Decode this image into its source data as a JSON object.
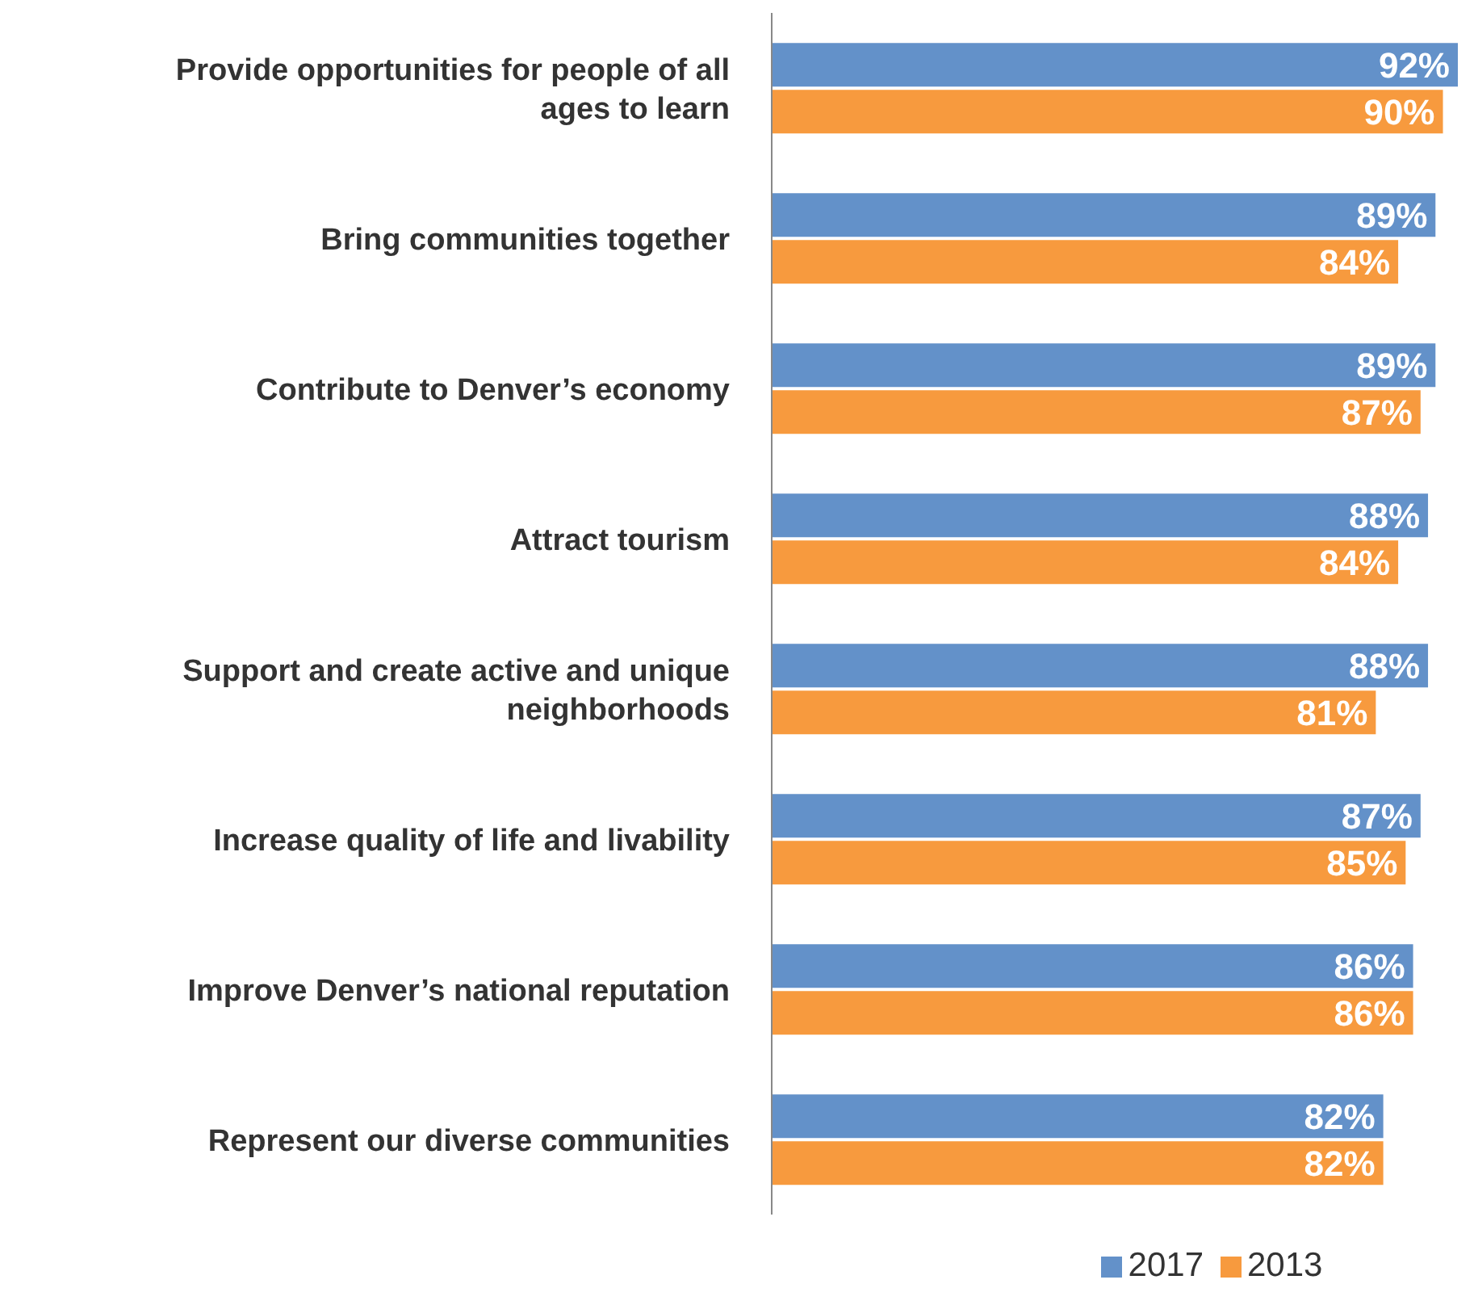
{
  "chart_data": {
    "type": "bar",
    "orientation": "horizontal",
    "categories": [
      "Provide opportunities for people of all ages to learn",
      "Bring communities together",
      "Contribute to Denver’s economy",
      "Attract tourism",
      "Support and create active and unique neighborhoods",
      "Increase quality of life and livability",
      "Improve Denver’s national reputation",
      "Represent our diverse communities"
    ],
    "series": [
      {
        "name": "2017",
        "color": "#6391c9",
        "values": [
          92,
          89,
          89,
          88,
          88,
          87,
          86,
          82
        ],
        "value_labels": [
          "92%",
          "89%",
          "89%",
          "88%",
          "88%",
          "87%",
          "86%",
          "82%"
        ]
      },
      {
        "name": "2013",
        "color": "#f79a3e",
        "values": [
          90,
          84,
          87,
          84,
          81,
          85,
          86,
          82
        ],
        "value_labels": [
          "90%",
          "84%",
          "87%",
          "84%",
          "81%",
          "85%",
          "86%",
          "82%"
        ]
      }
    ],
    "legend": "bottom"
  }
}
